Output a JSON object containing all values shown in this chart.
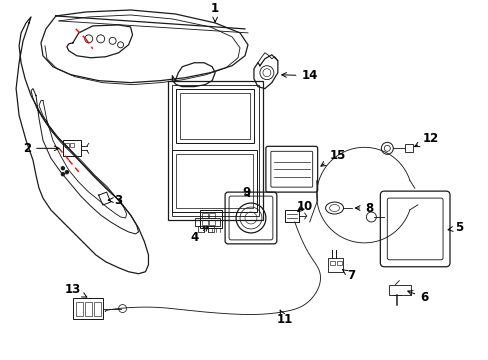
{
  "background_color": "#ffffff",
  "line_color": "#1a1a1a",
  "red_color": "#ff0000",
  "figsize": [
    4.89,
    3.6
  ],
  "dpi": 100,
  "label_fontsize": 8.5
}
